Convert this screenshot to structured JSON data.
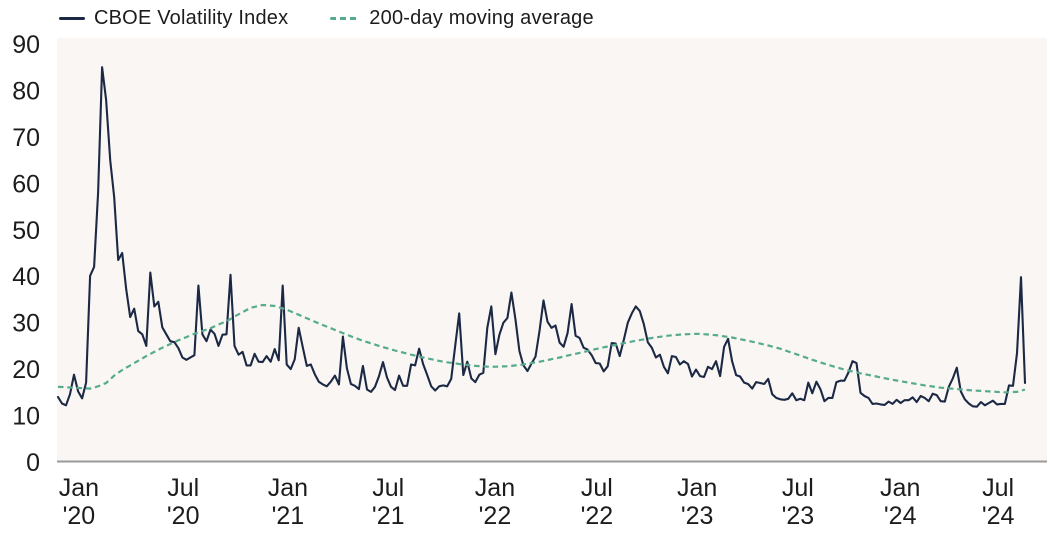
{
  "page": {
    "background": "#ffffff"
  },
  "legend": {
    "series1_label": "CBOE Volatility Index",
    "series2_label": "200-day moving average"
  },
  "chart_data": {
    "type": "line",
    "title": "",
    "legend_position": "top-left",
    "grid": false,
    "plot_background": "#faf6f4",
    "axis_line_color": "#9a9a9a",
    "label_color": "#1c1c1c",
    "y_axis": {
      "min": 0,
      "max": 90,
      "step": 10,
      "ticks": [
        0,
        10,
        20,
        30,
        40,
        50,
        60,
        70,
        80,
        90
      ]
    },
    "x_axis": {
      "unit": "weeks since Jan 2020",
      "ticks": [
        {
          "month": "Jan",
          "year": "'20",
          "week": 5.2
        },
        {
          "month": "Jul",
          "year": "'20",
          "week": 31.2
        },
        {
          "month": "Jan",
          "year": "'21",
          "week": 57.3
        },
        {
          "month": "Jul",
          "year": "'21",
          "week": 82.3
        },
        {
          "month": "Jan",
          "year": "'22",
          "week": 108.9
        },
        {
          "month": "Jul",
          "year": "'22",
          "week": 134.3
        },
        {
          "month": "Jan",
          "year": "'23",
          "week": 159.3
        },
        {
          "month": "Jul",
          "year": "'23",
          "week": 184.4
        },
        {
          "month": "Jan",
          "year": "'24",
          "week": 209.9
        },
        {
          "month": "Jul",
          "year": "'24",
          "week": 234.3
        }
      ]
    },
    "series": [
      {
        "name": "CBOE Volatility Index",
        "color": "#1c2944",
        "line_style": "solid",
        "sampling": "weekly",
        "values": [
          14.0,
          12.6,
          12.2,
          14.6,
          18.8,
          15.2,
          13.7,
          17.1,
          40.1,
          42.0,
          58.0,
          85.0,
          78.0,
          65.0,
          57.0,
          43.5,
          45.0,
          37.2,
          31.2,
          33.0,
          28.2,
          27.5,
          25.0,
          40.8,
          33.5,
          34.5,
          29.0,
          27.5,
          26.0,
          25.8,
          24.5,
          22.5,
          22.0,
          22.5,
          23.0,
          38.0,
          27.5,
          26.0,
          28.5,
          27.6,
          25.0,
          27.4,
          27.5,
          40.3,
          25.0,
          23.1,
          23.7,
          20.8,
          20.8,
          23.3,
          21.6,
          21.5,
          22.8,
          21.6,
          24.3,
          21.9,
          38.0,
          21.0,
          20.0,
          22.1,
          28.9,
          24.7,
          20.7,
          21.0,
          18.9,
          17.3,
          16.7,
          16.3,
          17.3,
          18.6,
          16.7,
          27.0,
          20.2,
          16.8,
          16.4,
          15.7,
          20.7,
          15.6,
          15.1,
          16.2,
          18.5,
          21.5,
          18.2,
          16.2,
          15.5,
          18.6,
          16.4,
          16.4,
          21.0,
          20.8,
          24.4,
          21.1,
          18.8,
          16.3,
          15.4,
          16.3,
          16.5,
          16.3,
          17.9,
          25.0,
          32.0,
          18.7,
          21.6,
          18.0,
          17.2,
          18.8,
          19.2,
          28.9,
          33.5,
          23.2,
          27.4,
          30.0,
          31.0,
          36.5,
          30.8,
          23.9,
          20.8,
          19.6,
          21.2,
          22.7,
          28.2,
          34.8,
          30.2,
          28.9,
          29.4,
          25.7,
          24.8,
          27.8,
          34.0,
          27.2,
          26.7,
          24.6,
          24.2,
          23.0,
          21.3,
          21.2,
          19.5,
          20.6,
          25.6,
          25.5,
          22.8,
          26.3,
          30.0,
          32.0,
          33.5,
          32.5,
          29.7,
          25.8,
          24.6,
          22.5,
          23.1,
          20.5,
          19.1,
          22.8,
          22.6,
          21.0,
          21.7,
          21.1,
          18.4,
          19.9,
          18.5,
          18.3,
          20.5,
          20.0,
          21.7,
          18.5,
          24.8,
          26.5,
          21.7,
          18.7,
          18.4,
          17.1,
          16.8,
          15.8,
          17.2,
          17.0,
          16.8,
          17.9,
          14.6,
          13.8,
          13.5,
          13.4,
          13.6,
          14.8,
          13.3,
          13.6,
          13.3,
          17.1,
          14.8,
          17.3,
          15.7,
          13.1,
          13.8,
          13.8,
          17.2,
          17.5,
          17.5,
          19.3,
          21.7,
          21.3,
          14.9,
          14.2,
          13.8,
          12.5,
          12.6,
          12.4,
          12.3,
          13.0,
          12.5,
          13.4,
          12.7,
          13.3,
          13.3,
          13.9,
          12.9,
          14.2,
          13.8,
          13.1,
          14.7,
          14.4,
          13.1,
          13.0,
          16.2,
          18.0,
          20.3,
          15.2,
          13.5,
          12.6,
          12.0,
          11.9,
          12.9,
          12.2,
          12.7,
          13.2,
          12.4,
          12.5,
          12.5,
          16.5,
          16.4,
          23.4,
          39.8,
          17.0
        ]
      },
      {
        "name": "200-day moving average",
        "color": "#55ab8b",
        "line_style": "dashed",
        "keypoints": [
          [
            0,
            16.2
          ],
          [
            4,
            16.0
          ],
          [
            8,
            15.8
          ],
          [
            10,
            16.3
          ],
          [
            12,
            17.0
          ],
          [
            14,
            18.6
          ],
          [
            16,
            19.8
          ],
          [
            18,
            20.8
          ],
          [
            20,
            21.8
          ],
          [
            22,
            22.8
          ],
          [
            24,
            23.7
          ],
          [
            26,
            24.6
          ],
          [
            28,
            25.4
          ],
          [
            30,
            26.2
          ],
          [
            32,
            26.9
          ],
          [
            34,
            27.6
          ],
          [
            36,
            28.2
          ],
          [
            38,
            28.8
          ],
          [
            40,
            29.6
          ],
          [
            42,
            30.3
          ],
          [
            45,
            31.8
          ],
          [
            48,
            33.2
          ],
          [
            51,
            33.8
          ],
          [
            54,
            33.6
          ],
          [
            57,
            32.8
          ],
          [
            60,
            31.7
          ],
          [
            64,
            30.2
          ],
          [
            68,
            28.8
          ],
          [
            72,
            27.4
          ],
          [
            76,
            26.1
          ],
          [
            80,
            25.0
          ],
          [
            84,
            24.0
          ],
          [
            88,
            23.1
          ],
          [
            92,
            22.3
          ],
          [
            96,
            21.6
          ],
          [
            100,
            21.1
          ],
          [
            104,
            20.7
          ],
          [
            108,
            20.5
          ],
          [
            112,
            20.6
          ],
          [
            116,
            21.0
          ],
          [
            120,
            21.6
          ],
          [
            124,
            22.3
          ],
          [
            128,
            23.1
          ],
          [
            132,
            23.9
          ],
          [
            136,
            24.7
          ],
          [
            140,
            25.4
          ],
          [
            144,
            26.1
          ],
          [
            148,
            26.7
          ],
          [
            152,
            27.2
          ],
          [
            156,
            27.5
          ],
          [
            160,
            27.6
          ],
          [
            164,
            27.3
          ],
          [
            168,
            26.8
          ],
          [
            172,
            26.1
          ],
          [
            176,
            25.3
          ],
          [
            180,
            24.4
          ],
          [
            184,
            23.2
          ],
          [
            188,
            22.0
          ],
          [
            192,
            20.9
          ],
          [
            196,
            19.9
          ],
          [
            200,
            19.1
          ],
          [
            204,
            18.4
          ],
          [
            208,
            17.7
          ],
          [
            212,
            17.1
          ],
          [
            216,
            16.5
          ],
          [
            220,
            16.0
          ],
          [
            224,
            15.7
          ],
          [
            228,
            15.4
          ],
          [
            232,
            15.2
          ],
          [
            236,
            15.0
          ],
          [
            239,
            15.1
          ],
          [
            241,
            15.6
          ]
        ]
      }
    ]
  }
}
